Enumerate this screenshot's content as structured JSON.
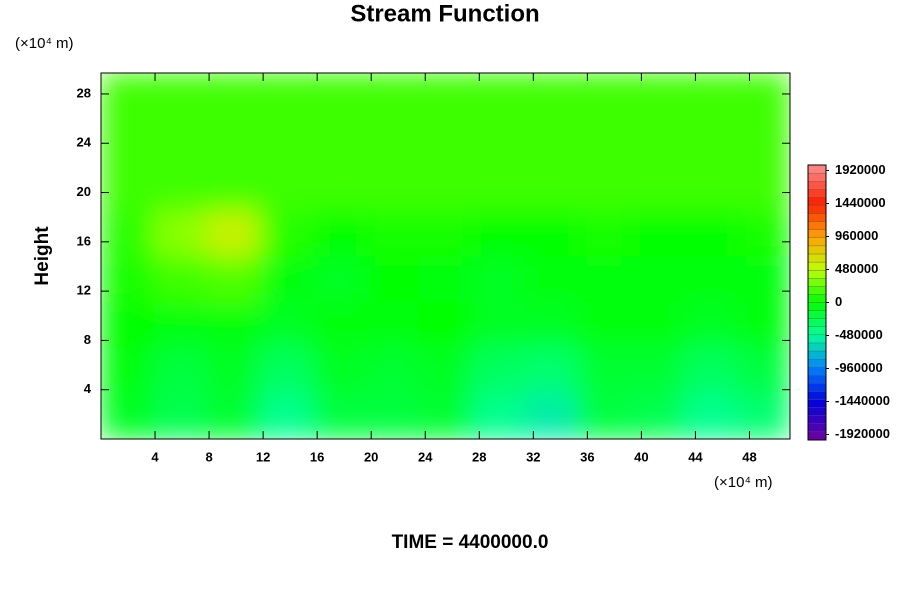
{
  "chart_data": {
    "type": "contour",
    "title": "Stream Function",
    "ylabel": "Height",
    "y_unit": "(×10⁴ m)",
    "x_unit": "(×10⁴ m)",
    "footer": "TIME = 4400000.0",
    "xlim": [
      0,
      51
    ],
    "ylim": [
      0,
      29.7
    ],
    "xticks": [
      4,
      8,
      12,
      16,
      20,
      24,
      28,
      32,
      36,
      40,
      44,
      48
    ],
    "yticks": [
      4,
      8,
      12,
      16,
      20,
      24,
      28
    ],
    "x": [
      1.96,
      5.88,
      9.81,
      13.73,
      17.65,
      21.58,
      25.5,
      29.42,
      33.35,
      37.27,
      41.19,
      45.12,
      49.04
    ],
    "y": [
      1.86,
      5.57,
      9.28,
      13.0,
      16.71,
      20.42,
      24.13,
      27.84
    ],
    "z": [
      [
        -100000,
        -250000,
        -150000,
        -450000,
        -200000,
        -200000,
        -150000,
        -450000,
        -550000,
        -200000,
        -250000,
        -450000,
        -350000
      ],
      [
        -50000,
        -200000,
        -100000,
        -300000,
        -100000,
        -150000,
        -100000,
        -300000,
        -350000,
        -150000,
        -150000,
        -300000,
        -200000
      ],
      [
        0,
        -50000,
        -50000,
        -100000,
        -50000,
        -50000,
        0,
        -100000,
        -100000,
        -50000,
        -50000,
        -100000,
        -50000
      ],
      [
        50000,
        150000,
        200000,
        -50000,
        -100000,
        0,
        -50000,
        -100000,
        -50000,
        -50000,
        -50000,
        -50000,
        -50000
      ],
      [
        100000,
        350000,
        550000,
        100000,
        0,
        50000,
        50000,
        0,
        0,
        50000,
        0,
        0,
        50000
      ],
      [
        150000,
        150000,
        150000,
        150000,
        150000,
        150000,
        150000,
        150000,
        150000,
        150000,
        150000,
        150000,
        150000
      ],
      [
        150000,
        150000,
        150000,
        150000,
        150000,
        150000,
        150000,
        150000,
        150000,
        150000,
        150000,
        150000,
        150000
      ],
      [
        150000,
        150000,
        150000,
        150000,
        150000,
        150000,
        150000,
        150000,
        150000,
        150000,
        150000,
        150000,
        150000
      ]
    ],
    "clim": [
      -2000000,
      2000000
    ],
    "cticks": [
      1920000,
      1440000,
      960000,
      480000,
      0,
      -480000,
      -960000,
      -1440000,
      -1920000
    ],
    "colormap": [
      {
        "value": -2000000,
        "color": "#7000a0"
      },
      {
        "value": -1440000,
        "color": "#0000e0"
      },
      {
        "value": -960000,
        "color": "#0080ff"
      },
      {
        "value": -480000,
        "color": "#00ff99"
      },
      {
        "value": 0,
        "color": "#00ff00"
      },
      {
        "value": 480000,
        "color": "#c0ff00"
      },
      {
        "value": 960000,
        "color": "#ffa000"
      },
      {
        "value": 1440000,
        "color": "#ff2000"
      },
      {
        "value": 2000000,
        "color": "#ff9090"
      }
    ]
  }
}
